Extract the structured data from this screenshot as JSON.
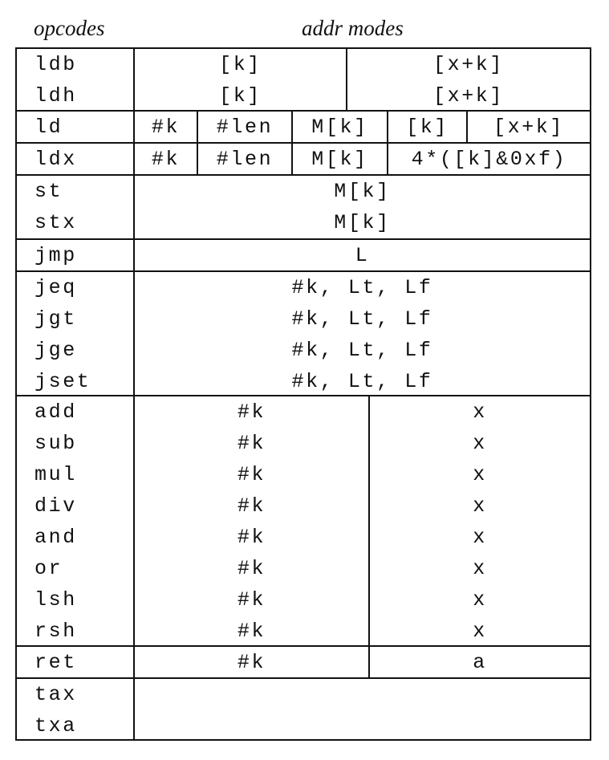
{
  "header": {
    "opcodes": "opcodes",
    "addr_modes": "addr modes"
  },
  "rows": [
    {
      "opcodes": [
        "ldb",
        "ldh"
      ],
      "cells": [
        [
          "[k]",
          "[k]"
        ],
        [
          "[x+k]",
          "[x+k]"
        ]
      ]
    },
    {
      "opcodes": [
        "ld"
      ],
      "cells": [
        [
          "#k"
        ],
        [
          "#len"
        ],
        [
          "M[k]"
        ],
        [
          "[k]"
        ],
        [
          "[x+k]"
        ]
      ]
    },
    {
      "opcodes": [
        "ldx"
      ],
      "cells": [
        [
          "#k"
        ],
        [
          "#len"
        ],
        [
          "M[k]"
        ],
        [
          "4*([k]&0xf)"
        ]
      ]
    },
    {
      "opcodes": [
        "st",
        "stx"
      ],
      "cells": [
        [
          "M[k]",
          "M[k]"
        ]
      ]
    },
    {
      "opcodes": [
        "jmp"
      ],
      "cells": [
        [
          "L"
        ]
      ]
    },
    {
      "opcodes": [
        "jeq",
        "jgt",
        "jge",
        "jset"
      ],
      "cells": [
        [
          "#k, Lt, Lf",
          "#k, Lt, Lf",
          "#k, Lt, Lf",
          "#k, Lt, Lf"
        ]
      ]
    },
    {
      "opcodes": [
        "add",
        "sub",
        "mul",
        "div",
        "and",
        "or",
        "lsh",
        "rsh"
      ],
      "cells": [
        [
          "#k",
          "#k",
          "#k",
          "#k",
          "#k",
          "#k",
          "#k",
          "#k"
        ],
        [
          "x",
          "x",
          "x",
          "x",
          "x",
          "x",
          "x",
          "x"
        ]
      ]
    },
    {
      "opcodes": [
        "ret"
      ],
      "cells": [
        [
          "#k"
        ],
        [
          "a"
        ]
      ]
    },
    {
      "opcodes": [
        "tax",
        "txa"
      ],
      "cells": [
        []
      ]
    }
  ]
}
